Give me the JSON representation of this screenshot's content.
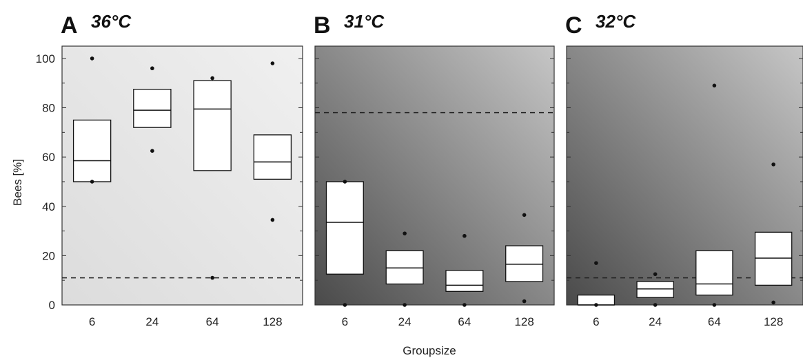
{
  "chart_data": {
    "type": "box",
    "ylabel": "Bees [%]",
    "xlabel": "Groupsize",
    "ylim": [
      0,
      105
    ],
    "yticks": [
      0,
      20,
      40,
      60,
      80,
      100
    ],
    "categories": [
      "6",
      "24",
      "64",
      "128"
    ],
    "panels": [
      {
        "letter": "A",
        "temperature": "36°C",
        "background": "light",
        "reference_line": 11,
        "boxes": [
          {
            "category": "6",
            "q1": 50,
            "median": 58.5,
            "q3": 75,
            "outliers": [
              100,
              50
            ]
          },
          {
            "category": "24",
            "q1": 72,
            "median": 79,
            "q3": 87.5,
            "outliers": [
              96,
              62.5
            ]
          },
          {
            "category": "64",
            "q1": 54.5,
            "median": 79.5,
            "q3": 91,
            "outliers": [
              92,
              11
            ]
          },
          {
            "category": "128",
            "q1": 51,
            "median": 58,
            "q3": 69,
            "outliers": [
              98,
              34.5
            ]
          }
        ]
      },
      {
        "letter": "B",
        "temperature": "31°C",
        "background": "dark",
        "reference_line": 78,
        "boxes": [
          {
            "category": "6",
            "q1": 12.5,
            "median": 33.5,
            "q3": 50,
            "outliers": [
              50,
              0
            ]
          },
          {
            "category": "24",
            "q1": 8.5,
            "median": 15,
            "q3": 22,
            "outliers": [
              29,
              0
            ]
          },
          {
            "category": "64",
            "q1": 5.5,
            "median": 8,
            "q3": 14,
            "outliers": [
              28,
              0
            ]
          },
          {
            "category": "128",
            "q1": 9.5,
            "median": 16.5,
            "q3": 24,
            "outliers": [
              36.5,
              1.5
            ]
          }
        ]
      },
      {
        "letter": "C",
        "temperature": "32°C",
        "background": "dark",
        "reference_line": 11,
        "boxes": [
          {
            "category": "6",
            "q1": 0,
            "median": 0,
            "q3": 4,
            "outliers": [
              17,
              0
            ]
          },
          {
            "category": "24",
            "q1": 3,
            "median": 6.5,
            "q3": 9.5,
            "outliers": [
              12.5,
              0
            ]
          },
          {
            "category": "64",
            "q1": 4,
            "median": 8.5,
            "q3": 22,
            "outliers": [
              89,
              0
            ]
          },
          {
            "category": "128",
            "q1": 8,
            "median": 19,
            "q3": 29.5,
            "outliers": [
              57,
              1
            ]
          }
        ]
      }
    ]
  }
}
